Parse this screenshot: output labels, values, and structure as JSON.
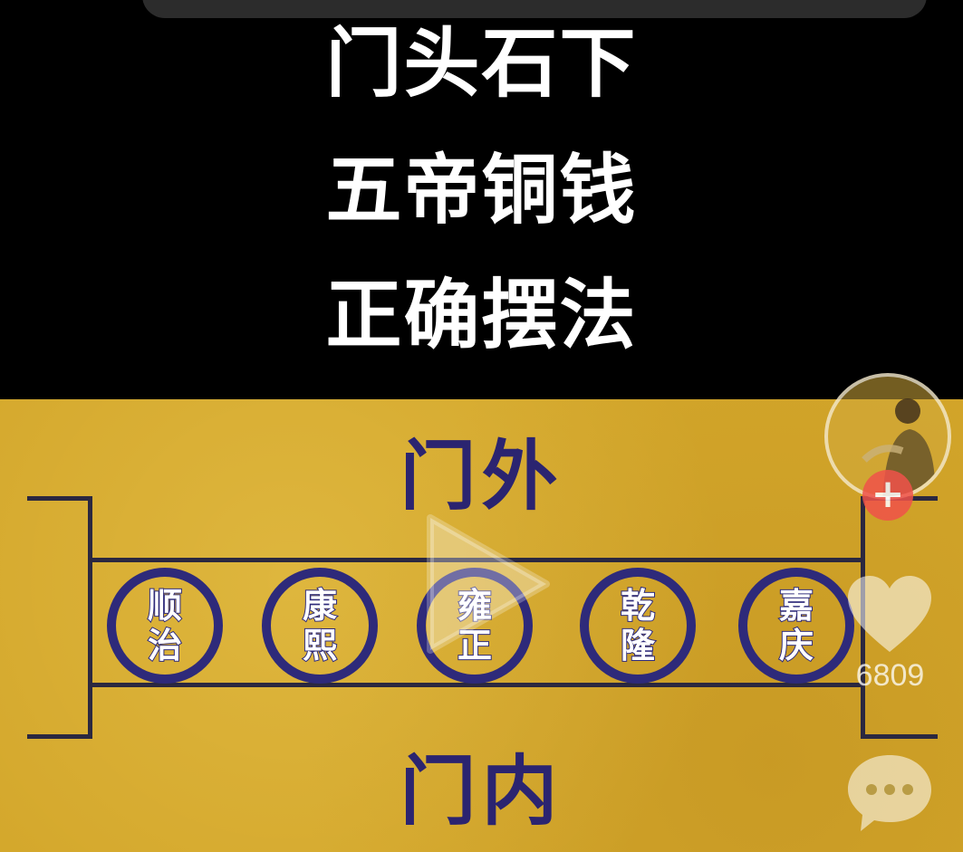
{
  "title_lines": [
    "门头石下",
    "五帝铜钱",
    "正确摆法"
  ],
  "poster": {
    "outside_label": "门外",
    "inside_label": "门内",
    "coins": [
      {
        "top": "顺",
        "bottom": "治"
      },
      {
        "top": "康",
        "bottom": "熙"
      },
      {
        "top": "雍",
        "bottom": "正"
      },
      {
        "top": "乾",
        "bottom": "隆"
      },
      {
        "top": "嘉",
        "bottom": "庆"
      }
    ]
  },
  "actions": {
    "like_count": "6809",
    "follow_symbol": "+"
  },
  "icons": [
    "play-icon",
    "avatar",
    "plus-icon",
    "heart-icon",
    "comment-icon"
  ],
  "colors": {
    "background": "#000000",
    "poster_gold": "#d3a62a",
    "ink_navy": "#2e2a7a",
    "follow_red": "#f0524a"
  }
}
